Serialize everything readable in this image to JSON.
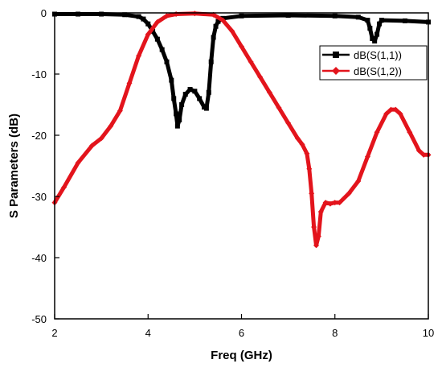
{
  "chart_data": {
    "type": "line",
    "xlabel": "Freq (GHz)",
    "ylabel": "S Parameters (dB)",
    "xlim": [
      2,
      10
    ],
    "ylim": [
      -50,
      0
    ],
    "xticks": [
      2,
      4,
      6,
      8,
      10
    ],
    "yticks": [
      0,
      -10,
      -20,
      -30,
      -40,
      -50
    ],
    "grid": false,
    "legend_position": "top-right",
    "series": [
      {
        "name": "dB(S(1,1))",
        "color": "#000000",
        "marker": "square",
        "points": [
          [
            2.0,
            -0.2
          ],
          [
            2.5,
            -0.2
          ],
          [
            3.0,
            -0.2
          ],
          [
            3.5,
            -0.3
          ],
          [
            3.8,
            -0.6
          ],
          [
            3.9,
            -1.0
          ],
          [
            4.0,
            -1.8
          ],
          [
            4.1,
            -3.0
          ],
          [
            4.2,
            -4.3
          ],
          [
            4.3,
            -6.0
          ],
          [
            4.4,
            -8.0
          ],
          [
            4.5,
            -11.0
          ],
          [
            4.55,
            -14.0
          ],
          [
            4.6,
            -16.5
          ],
          [
            4.63,
            -18.5
          ],
          [
            4.67,
            -17.5
          ],
          [
            4.72,
            -15.0
          ],
          [
            4.8,
            -13.3
          ],
          [
            4.9,
            -12.5
          ],
          [
            5.0,
            -12.8
          ],
          [
            5.1,
            -14.0
          ],
          [
            5.2,
            -15.4
          ],
          [
            5.25,
            -15.6
          ],
          [
            5.3,
            -13.0
          ],
          [
            5.35,
            -8.0
          ],
          [
            5.4,
            -4.0
          ],
          [
            5.45,
            -2.2
          ],
          [
            5.5,
            -1.4
          ],
          [
            5.6,
            -0.9
          ],
          [
            6.0,
            -0.5
          ],
          [
            7.0,
            -0.4
          ],
          [
            8.0,
            -0.5
          ],
          [
            8.5,
            -0.7
          ],
          [
            8.7,
            -1.2
          ],
          [
            8.75,
            -2.5
          ],
          [
            8.8,
            -4.2
          ],
          [
            8.85,
            -4.6
          ],
          [
            8.9,
            -3.5
          ],
          [
            8.95,
            -1.8
          ],
          [
            9.0,
            -1.2
          ],
          [
            9.5,
            -1.3
          ],
          [
            10.0,
            -1.5
          ]
        ]
      },
      {
        "name": "dB(S(1,2))",
        "color": "#e3141c",
        "marker": "diamond",
        "points": [
          [
            2.0,
            -31.0
          ],
          [
            2.2,
            -28.5
          ],
          [
            2.5,
            -24.5
          ],
          [
            2.8,
            -21.7
          ],
          [
            3.0,
            -20.5
          ],
          [
            3.2,
            -18.5
          ],
          [
            3.4,
            -16.0
          ],
          [
            3.6,
            -11.5
          ],
          [
            3.8,
            -7.0
          ],
          [
            4.0,
            -3.5
          ],
          [
            4.2,
            -1.5
          ],
          [
            4.4,
            -0.5
          ],
          [
            4.6,
            -0.2
          ],
          [
            5.0,
            -0.1
          ],
          [
            5.4,
            -0.3
          ],
          [
            5.6,
            -1.2
          ],
          [
            5.8,
            -3.0
          ],
          [
            6.0,
            -5.5
          ],
          [
            6.2,
            -8.0
          ],
          [
            6.4,
            -10.5
          ],
          [
            6.6,
            -13.0
          ],
          [
            6.8,
            -15.5
          ],
          [
            7.0,
            -18.0
          ],
          [
            7.2,
            -20.5
          ],
          [
            7.3,
            -21.5
          ],
          [
            7.4,
            -23.0
          ],
          [
            7.45,
            -25.5
          ],
          [
            7.5,
            -29.5
          ],
          [
            7.55,
            -35.0
          ],
          [
            7.6,
            -38.0
          ],
          [
            7.65,
            -36.5
          ],
          [
            7.7,
            -32.5
          ],
          [
            7.8,
            -31.0
          ],
          [
            7.9,
            -31.2
          ],
          [
            8.0,
            -31.0
          ],
          [
            8.1,
            -31.0
          ],
          [
            8.3,
            -29.5
          ],
          [
            8.5,
            -27.5
          ],
          [
            8.7,
            -23.5
          ],
          [
            8.9,
            -19.5
          ],
          [
            9.1,
            -16.5
          ],
          [
            9.2,
            -15.8
          ],
          [
            9.3,
            -15.8
          ],
          [
            9.4,
            -16.5
          ],
          [
            9.6,
            -19.5
          ],
          [
            9.8,
            -22.5
          ],
          [
            9.9,
            -23.2
          ],
          [
            10.0,
            -23.2
          ]
        ]
      }
    ]
  }
}
